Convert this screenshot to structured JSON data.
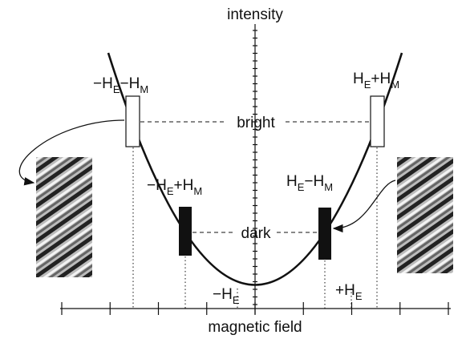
{
  "axes": {
    "y_label": "intensity",
    "x_label": "magnetic field"
  },
  "levels": {
    "bright": "bright",
    "dark": "dark"
  },
  "labels": {
    "left_bright": [
      "−H",
      "E",
      "−H",
      "M"
    ],
    "right_bright": [
      "H",
      "E",
      "+H",
      "M"
    ],
    "left_dark": [
      "−H",
      "E",
      "+H",
      "M"
    ],
    "right_dark": [
      "H",
      "E",
      "−H",
      "M"
    ],
    "left_exchange": [
      "−H",
      "E"
    ],
    "right_exchange": [
      "+H",
      "E"
    ]
  }
}
